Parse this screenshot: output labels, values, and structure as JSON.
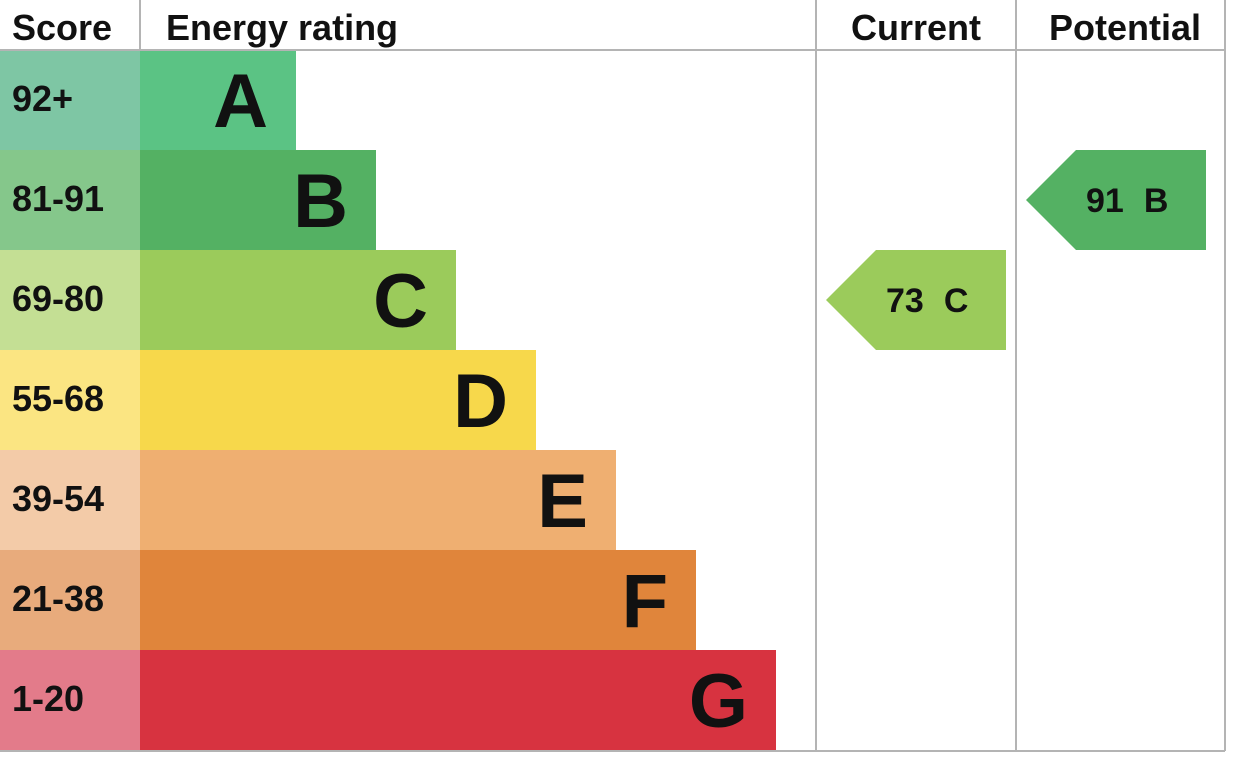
{
  "headers": {
    "score": "Score",
    "energy_rating": "Energy rating",
    "current": "Current",
    "potential": "Potential"
  },
  "chart_data": {
    "type": "bar",
    "bands": [
      {
        "letter": "A",
        "range": "92+",
        "score_color": "#7ec6a4",
        "bar_color": "#5bc384"
      },
      {
        "letter": "B",
        "range": "81-91",
        "score_color": "#85c78b",
        "bar_color": "#54b163"
      },
      {
        "letter": "C",
        "range": "69-80",
        "score_color": "#c4df94",
        "bar_color": "#9bcb5b"
      },
      {
        "letter": "D",
        "range": "55-68",
        "score_color": "#fbe582",
        "bar_color": "#f7d84b"
      },
      {
        "letter": "E",
        "range": "39-54",
        "score_color": "#f3cba8",
        "bar_color": "#efaf71"
      },
      {
        "letter": "F",
        "range": "21-38",
        "score_color": "#e8ab7c",
        "bar_color": "#e0853b"
      },
      {
        "letter": "G",
        "range": "1-20",
        "score_color": "#e37b8a",
        "bar_color": "#d73340"
      }
    ],
    "current": {
      "value": 73,
      "band": "C",
      "color": "#9bcb5b"
    },
    "potential": {
      "value": 91,
      "band": "B",
      "color": "#54b163"
    }
  }
}
